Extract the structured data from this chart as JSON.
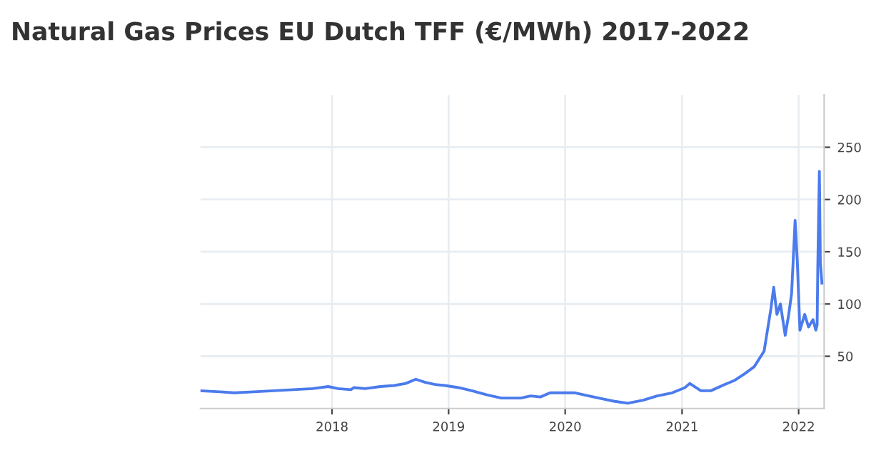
{
  "chart_data": {
    "type": "line",
    "title": "Natural Gas Prices EU Dutch TFF (€/MWh) 2017-2022",
    "x": [
      "2016-11-15",
      "2017-01-15",
      "2017-03-01",
      "2017-05-01",
      "2017-07-01",
      "2017-09-01",
      "2017-11-01",
      "2017-12-20",
      "2018-01-20",
      "2018-03-01",
      "2018-03-10",
      "2018-04-15",
      "2018-06-01",
      "2018-07-15",
      "2018-08-20",
      "2018-09-20",
      "2018-10-20",
      "2018-11-20",
      "2018-12-20",
      "2019-02-01",
      "2019-03-15",
      "2019-05-01",
      "2019-06-15",
      "2019-07-15",
      "2019-08-15",
      "2019-09-15",
      "2019-10-15",
      "2019-11-15",
      "2019-12-15",
      "2020-02-01",
      "2020-03-15",
      "2020-05-01",
      "2020-06-01",
      "2020-07-15",
      "2020-09-01",
      "2020-10-15",
      "2020-12-01",
      "2021-01-10",
      "2021-01-25",
      "2021-03-01",
      "2021-04-01",
      "2021-05-15",
      "2021-06-15",
      "2021-07-15",
      "2021-08-15",
      "2021-09-15",
      "2021-10-06",
      "2021-10-15",
      "2021-10-25",
      "2021-11-05",
      "2021-11-20",
      "2021-12-01",
      "2021-12-10",
      "2021-12-21",
      "2021-12-28",
      "2022-01-05",
      "2022-01-20",
      "2022-02-01",
      "2022-02-15",
      "2022-02-24",
      "2022-02-28",
      "2022-03-02",
      "2022-03-07",
      "2022-03-10",
      "2022-03-15"
    ],
    "values": [
      17,
      16,
      15,
      16,
      17,
      18,
      19,
      21,
      19,
      18,
      20,
      19,
      21,
      22,
      24,
      28,
      25,
      23,
      22,
      20,
      17,
      13,
      10,
      10,
      10,
      12,
      11,
      15,
      15,
      15,
      12,
      9,
      7,
      5,
      8,
      12,
      15,
      20,
      24,
      17,
      17,
      23,
      27,
      33,
      40,
      55,
      95,
      116,
      90,
      100,
      70,
      90,
      110,
      180,
      140,
      75,
      90,
      78,
      85,
      75,
      80,
      135,
      227,
      140,
      120
    ],
    "color": "#4b7bec",
    "xlim": [
      "2016-11-15",
      "2022-03-22"
    ],
    "xticks": [
      "2018",
      "2019",
      "2020",
      "2021",
      "2022"
    ],
    "ylim": [
      0,
      300
    ],
    "yticks": [
      50,
      100,
      150,
      200,
      250
    ],
    "grid": true,
    "legend": false,
    "marker": "none",
    "line_style": "solid"
  }
}
